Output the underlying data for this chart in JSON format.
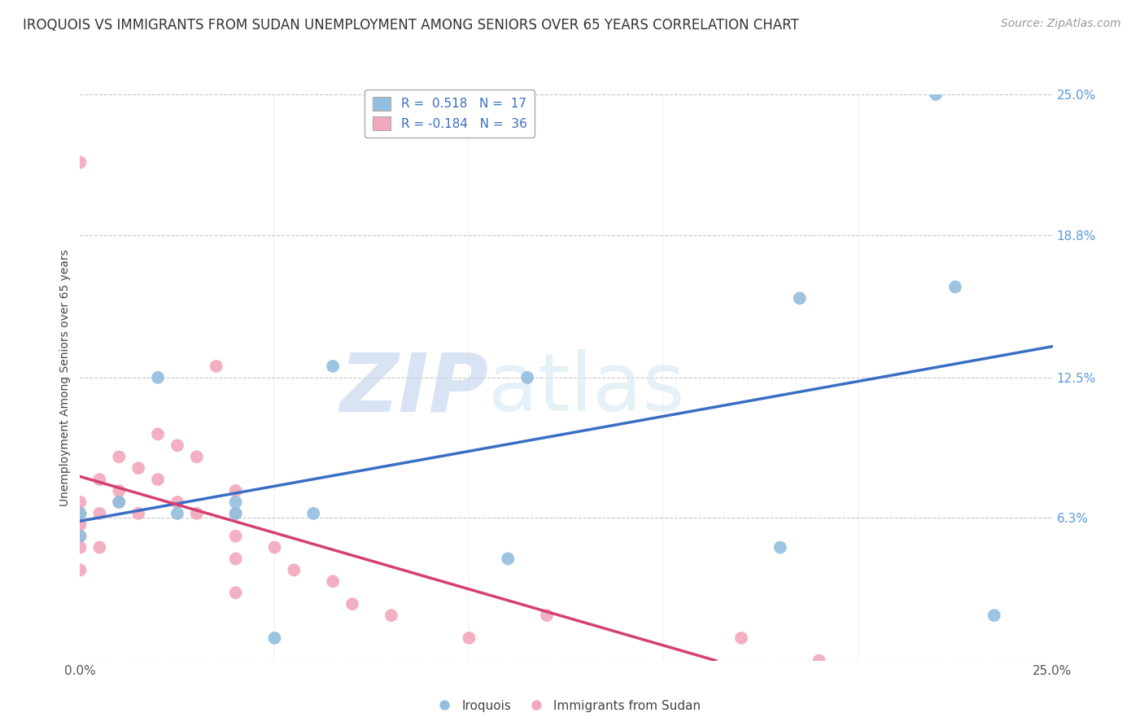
{
  "title": "IROQUOIS VS IMMIGRANTS FROM SUDAN UNEMPLOYMENT AMONG SENIORS OVER 65 YEARS CORRELATION CHART",
  "source": "Source: ZipAtlas.com",
  "ylabel": "Unemployment Among Seniors over 65 years",
  "watermark_zip": "ZIP",
  "watermark_atlas": "atlas",
  "xlim": [
    0.0,
    0.25
  ],
  "ylim": [
    0.0,
    0.25
  ],
  "ytick_positions": [
    0.0,
    0.063,
    0.125,
    0.188,
    0.25
  ],
  "ytick_labels": [
    "",
    "6.3%",
    "12.5%",
    "18.8%",
    "25.0%"
  ],
  "blue_scatter_color": "#92BFDF",
  "pink_scatter_color": "#F2A8BC",
  "blue_line_color": "#3A6EC4",
  "pink_line_color": "#D44070",
  "pink_dash_color": "#F0A8C0",
  "grid_color": "#C8C8C8",
  "right_tick_color": "#5599DD",
  "background_color": "#FFFFFF",
  "iroquois_x": [
    0.0,
    0.0,
    0.01,
    0.02,
    0.025,
    0.04,
    0.04,
    0.06,
    0.11,
    0.115,
    0.185,
    0.22,
    0.225,
    0.235,
    0.18,
    0.05,
    0.065
  ],
  "iroquois_y": [
    0.065,
    0.055,
    0.07,
    0.125,
    0.065,
    0.065,
    0.07,
    0.065,
    0.045,
    0.125,
    0.16,
    0.25,
    0.165,
    0.02,
    0.05,
    0.01,
    0.13
  ],
  "sudan_x": [
    0.0,
    0.0,
    0.0,
    0.0,
    0.0,
    0.0,
    0.0,
    0.005,
    0.005,
    0.005,
    0.01,
    0.01,
    0.01,
    0.015,
    0.015,
    0.02,
    0.02,
    0.025,
    0.025,
    0.03,
    0.03,
    0.035,
    0.04,
    0.04,
    0.04,
    0.04,
    0.04,
    0.05,
    0.055,
    0.065,
    0.07,
    0.08,
    0.1,
    0.12,
    0.17,
    0.19
  ],
  "sudan_y": [
    0.22,
    0.07,
    0.065,
    0.06,
    0.055,
    0.05,
    0.04,
    0.08,
    0.065,
    0.05,
    0.09,
    0.075,
    0.07,
    0.085,
    0.065,
    0.1,
    0.08,
    0.095,
    0.07,
    0.09,
    0.065,
    0.13,
    0.075,
    0.065,
    0.055,
    0.045,
    0.03,
    0.05,
    0.04,
    0.035,
    0.025,
    0.02,
    0.01,
    0.02,
    0.01,
    0.0
  ],
  "title_fontsize": 12,
  "source_fontsize": 10,
  "axis_label_fontsize": 10,
  "legend_fontsize": 11,
  "tick_fontsize": 11
}
